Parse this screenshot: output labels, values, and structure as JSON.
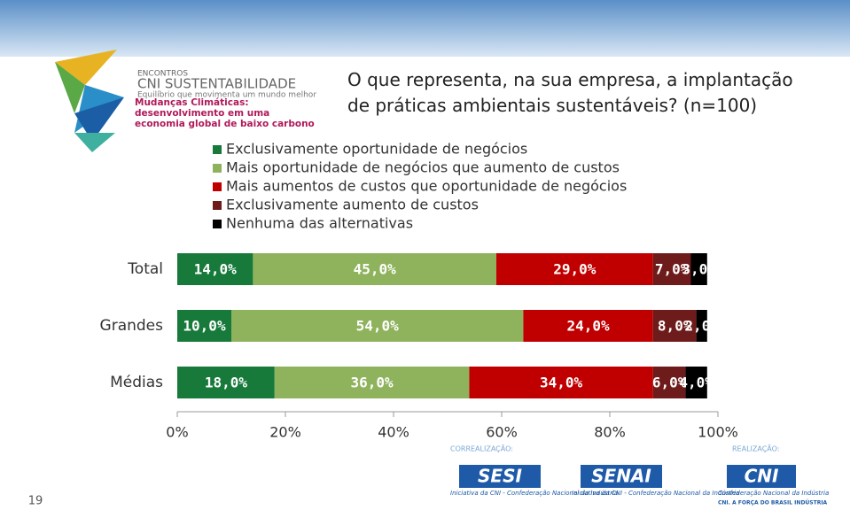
{
  "chart_data": {
    "type": "stacked-barh",
    "title": "O que representa, na sua empresa, a implantação de práticas ambientais sustentáveis? (n=100)",
    "categories": [
      "Total",
      "Grandes",
      "Médias"
    ],
    "series": [
      {
        "name": "Exclusivamente oportunidade de negócios",
        "color": "#17793a",
        "values": [
          14,
          10,
          18
        ],
        "value_labels": [
          "14,0%",
          "10,0%",
          "18,0%"
        ]
      },
      {
        "name": "Mais oportunidade de negócios que aumento de custos",
        "color": "#8fb35c",
        "values": [
          45,
          54,
          36
        ],
        "value_labels": [
          "45,0%",
          "54,0%",
          "36,0%"
        ]
      },
      {
        "name": "Mais aumentos de custos que oportunidade de negócios",
        "color": "#c00000",
        "values": [
          29,
          24,
          34
        ],
        "value_labels": [
          "29,0%",
          "24,0%",
          "34,0%"
        ]
      },
      {
        "name": "Exclusivamente aumento de custos",
        "color": "#6e1b1b",
        "values": [
          7,
          8,
          6
        ],
        "value_labels": [
          "7,0%",
          "8,0%",
          "6,0%"
        ]
      },
      {
        "name": "Nenhuma das alternativas",
        "color": "#000000",
        "values": [
          3,
          2,
          4
        ],
        "value_labels": [
          "3,0%",
          "2,0%",
          "4,0%"
        ]
      }
    ],
    "xlim": [
      0,
      100
    ],
    "xticks": [
      {
        "value": 0,
        "label": "0%"
      },
      {
        "value": 20,
        "label": "20%"
      },
      {
        "value": 40,
        "label": "40%"
      },
      {
        "value": 60,
        "label": "60%"
      },
      {
        "value": 80,
        "label": "80%"
      },
      {
        "value": 100,
        "label": "100%"
      }
    ]
  },
  "slide": {
    "event": "ENCONTROS",
    "brand": "CNI SUSTENTABILIDADE",
    "tagline": "Equilíbrio que movimenta um mundo melhor",
    "theme": "Mudanças Climáticas: desenvolvimento em uma economia global de baixo carbono",
    "coorganizer": "CORREALIZAÇÃO:",
    "organizer": "REALIZAÇÃO:",
    "logos": [
      {
        "name": "SESI",
        "caption": "Iniciativa da CNI - Confederação Nacional da Indústria"
      },
      {
        "name": "SENAI",
        "caption": "Iniciativa da CNI - Confederação Nacional da Indústria"
      },
      {
        "name": "CNI",
        "caption": "Confederação Nacional da Indústria",
        "slogan": "CNI. A FORÇA DO BRASIL INDÚSTRIA"
      }
    ],
    "page": "19"
  }
}
